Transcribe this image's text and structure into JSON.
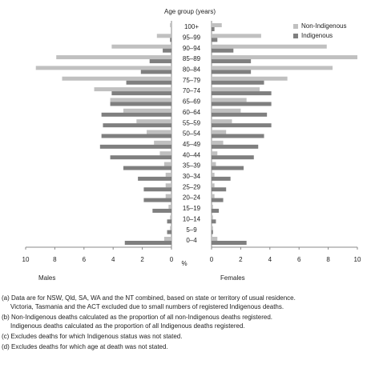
{
  "chart_data": [
    {
      "type": "hbar",
      "title": "Age group (years)",
      "label": "Males",
      "xlabel": "%",
      "reverse_x": true,
      "categories": [
        "100+",
        "95–99",
        "90–94",
        "85–89",
        "80–84",
        "75–79",
        "70–74",
        "65–69",
        "60–64",
        "55–59",
        "50–54",
        "45–49",
        "40–44",
        "35–39",
        "30–34",
        "25–29",
        "20–24",
        "15–19",
        "10–14",
        "5–9",
        "0–4"
      ],
      "xlim": [
        0,
        10
      ],
      "xticks": [
        0,
        2,
        4,
        6,
        8,
        10
      ],
      "series": [
        {
          "name": "Non-Indigenous",
          "color": "#c0c0c0",
          "values": [
            0.1,
            1.0,
            4.1,
            7.9,
            9.3,
            7.5,
            5.3,
            4.2,
            3.3,
            2.4,
            1.7,
            1.2,
            0.8,
            0.5,
            0.4,
            0.4,
            0.4,
            0.2,
            0.1,
            0.1,
            0.5
          ]
        },
        {
          "name": "Indigenous",
          "color": "#7f7f7f",
          "values": [
            0,
            0.1,
            0.6,
            1.5,
            2.1,
            3.1,
            4.1,
            4.2,
            4.8,
            4.7,
            4.8,
            4.9,
            4.2,
            3.3,
            2.3,
            1.9,
            1.9,
            1.3,
            0.3,
            0.3,
            3.2
          ]
        }
      ]
    },
    {
      "type": "hbar",
      "label": "Females",
      "reverse_x": false,
      "xlim": [
        0,
        10
      ],
      "xticks": [
        0,
        2,
        4,
        6,
        8,
        10
      ],
      "series": [
        {
          "name": "Non-Indigenous",
          "color": "#c0c0c0",
          "values": [
            0.7,
            3.4,
            7.9,
            10,
            8.3,
            5.2,
            3.3,
            2.4,
            2.0,
            1.4,
            1.0,
            0.8,
            0.4,
            0.3,
            0.2,
            0.2,
            0.2,
            0.1,
            0.1,
            0.1,
            0.4
          ]
        },
        {
          "name": "Indigenous",
          "color": "#7f7f7f",
          "values": [
            0.2,
            0.4,
            1.5,
            2.7,
            2.7,
            3.6,
            4.1,
            4.1,
            3.8,
            4.1,
            3.6,
            3.2,
            2.9,
            2.2,
            1.3,
            1.0,
            0.8,
            0.5,
            0.3,
            0.1,
            2.4
          ]
        }
      ]
    }
  ],
  "notes": [
    "(a) Data are for NSW, Qld, SA, WA and the NT combined, based on state or territory of usual residence.",
    "Victoria, Tasmania and the ACT excluded due to small numbers of registered Indigenous deaths.",
    "(b) Non-Indigenous deaths calculated as the proportion of all non-Indigenous deaths registered.",
    "Indigenous deaths calculated as the proportion of all Indigenous deaths registered.",
    "(c) Excludes deaths for which Indigenous status was not stated.",
    "(d) Excludes deaths for which age at death was not stated."
  ]
}
